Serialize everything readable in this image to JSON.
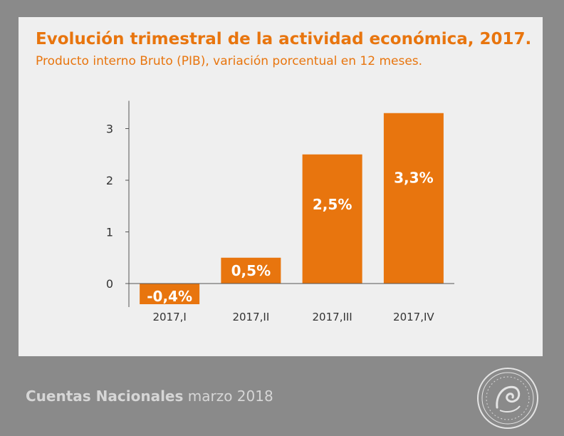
{
  "header": {
    "title": "Evolución trimestral de la actividad económica, 2017.",
    "subtitle": "Producto interno Bruto (PIB), variación porcentual en 12 meses."
  },
  "footer": {
    "series_name": "Cuentas Nacionales",
    "date": "marzo 2018"
  },
  "colors": {
    "bar": "#e8750e",
    "title": "#e8750e",
    "axis": "#555555",
    "background": "#8a8a8a",
    "panel": "#efefef"
  },
  "chart_data": {
    "type": "bar",
    "categories": [
      "2017,I",
      "2017,II",
      "2017,III",
      "2017,IV"
    ],
    "values": [
      -0.4,
      0.5,
      2.5,
      3.3
    ],
    "data_labels": [
      "-0,4%",
      "0,5%",
      "2,5%",
      "3,3%"
    ],
    "yticks": [
      0,
      1,
      2,
      3
    ],
    "ylim": [
      -0.4,
      3.4
    ],
    "grid": false,
    "legend": "none"
  }
}
